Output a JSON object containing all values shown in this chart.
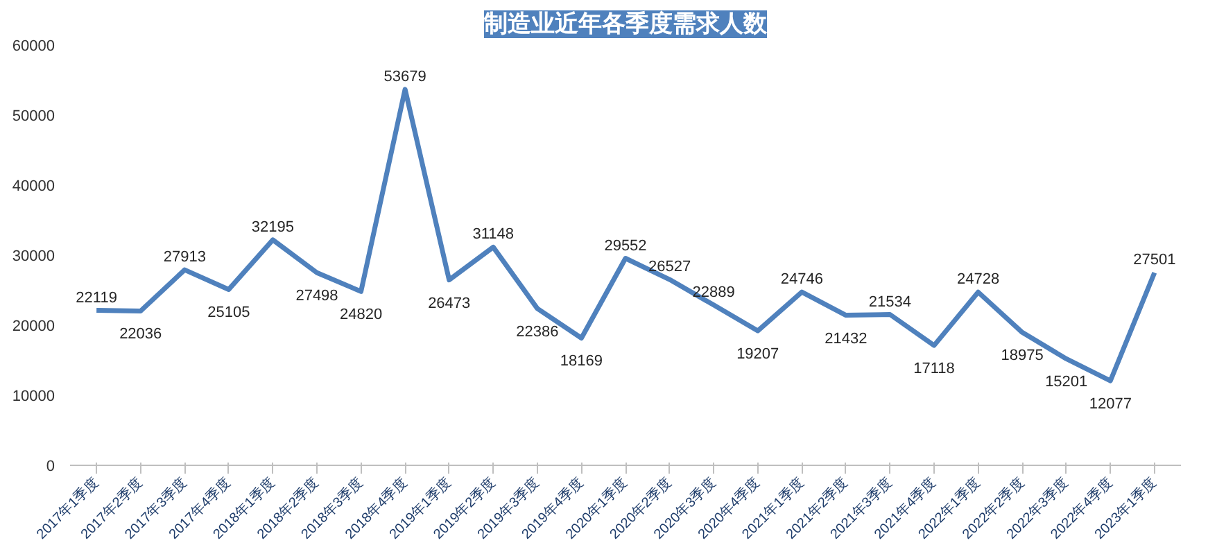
{
  "chart_data": {
    "type": "line",
    "title": "制造业近年各季度需求人数",
    "categories": [
      "2017年1季度",
      "2017年2季度",
      "2017年3季度",
      "2017年4季度",
      "2018年1季度",
      "2018年2季度",
      "2018年3季度",
      "2018年4季度",
      "2019年1季度",
      "2019年2季度",
      "2019年3季度",
      "2019年4季度",
      "2020年1季度",
      "2020年2季度",
      "2020年3季度",
      "2020年4季度",
      "2021年1季度",
      "2021年2季度",
      "2021年3季度",
      "2021年4季度",
      "2022年1季度",
      "2022年2季度",
      "2022年3季度",
      "2022年4季度",
      "2023年1季度"
    ],
    "series": [
      {
        "color": "#4f81bd",
        "values": [
          22119,
          22036,
          27913,
          25105,
          32195,
          27498,
          24820,
          53679,
          26473,
          31148,
          22386,
          18169,
          29552,
          26527,
          22889,
          19207,
          24746,
          21432,
          21534,
          17118,
          24728,
          18975,
          15201,
          12077,
          27501
        ]
      }
    ],
    "ylim": [
      0,
      60000
    ],
    "yticks": [
      0,
      10000,
      20000,
      30000,
      40000,
      50000,
      60000
    ],
    "grid": false,
    "marker": "none",
    "line_style": "solid",
    "data_labels": true
  }
}
